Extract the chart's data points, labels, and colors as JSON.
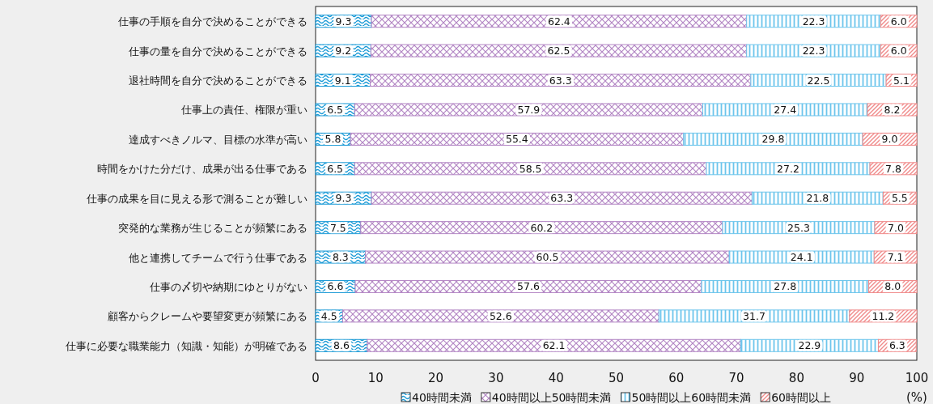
{
  "chart_data": {
    "type": "bar",
    "orientation": "horizontal",
    "stacked": true,
    "grid": false,
    "legend": "bottom",
    "xlabel": "(%)",
    "categories": [
      "仕事の手順を自分で決めることができる",
      "仕事の量を自分で決めることができる",
      "退社時間を自分で決めることができる",
      "仕事上の責任、権限が重い",
      "達成すべきノルマ、目標の水準が高い",
      "時間をかけた分だけ、成果が出る仕事である",
      "仕事の成果を目に見える形で測ることが難しい",
      "突発的な業務が生じることが頻繁にある",
      "他と連携してチームで行う仕事である",
      "仕事の〆切や納期にゆとりがない",
      "顧客からクレームや要望変更が頻繁にある",
      "仕事に必要な職業能力（知識・知能）が明確である"
    ],
    "xlim": [
      0,
      100
    ],
    "xticks": [
      0,
      10,
      20,
      30,
      40,
      50,
      60,
      70,
      80,
      90,
      100
    ],
    "series": [
      {
        "name": "40時間未満",
        "color": "#1a9ad6",
        "values": [
          9.3,
          9.2,
          9.1,
          6.5,
          5.8,
          6.5,
          9.3,
          7.5,
          8.3,
          6.6,
          4.5,
          8.6
        ],
        "value_labels": [
          "9.3",
          "9.2",
          "9.1",
          "6.5",
          "5.8",
          "6.5",
          "9.3",
          "7.5",
          "8.3",
          "6.6",
          "4.5",
          "8.6"
        ]
      },
      {
        "name": "40時間以上50時間未満",
        "color": "#b386c4",
        "values": [
          62.4,
          62.5,
          63.3,
          57.9,
          55.4,
          58.5,
          63.3,
          60.2,
          60.5,
          57.6,
          52.6,
          62.1
        ],
        "value_labels": [
          "62.4",
          "62.5",
          "63.3",
          "57.9",
          "55.4",
          "58.5",
          "63.3",
          "60.2",
          "60.5",
          "57.6",
          "52.6",
          "62.1"
        ]
      },
      {
        "name": "50時間以上60時間未満",
        "color": "#6cc5ec",
        "values": [
          22.3,
          22.3,
          22.5,
          27.4,
          29.8,
          27.2,
          21.8,
          25.3,
          24.1,
          27.8,
          31.7,
          22.9
        ],
        "value_labels": [
          "22.3",
          "22.3",
          "22.5",
          "27.4",
          "29.8",
          "27.2",
          "21.8",
          "25.3",
          "24.1",
          "27.8",
          "31.7",
          "22.9"
        ]
      },
      {
        "name": "60時間以上",
        "color": "#f08a8a",
        "values": [
          6.0,
          6.0,
          5.1,
          8.2,
          9.0,
          7.8,
          5.5,
          7.0,
          7.1,
          8.0,
          11.2,
          6.3
        ],
        "value_labels": [
          "6.0",
          "6.0",
          "5.1",
          "8.2",
          "9.0",
          "7.8",
          "5.5",
          "7.0",
          "7.1",
          "8.0",
          "11.2",
          "6.3"
        ]
      }
    ]
  }
}
